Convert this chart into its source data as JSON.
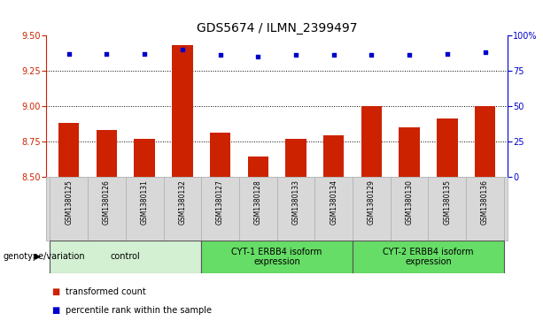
{
  "title": "GDS5674 / ILMN_2399497",
  "samples": [
    "GSM1380125",
    "GSM1380126",
    "GSM1380131",
    "GSM1380132",
    "GSM1380127",
    "GSM1380128",
    "GSM1380133",
    "GSM1380134",
    "GSM1380129",
    "GSM1380130",
    "GSM1380135",
    "GSM1380136"
  ],
  "bar_values": [
    8.88,
    8.83,
    8.77,
    9.43,
    8.81,
    8.64,
    8.77,
    8.79,
    9.0,
    8.85,
    8.91,
    9.0
  ],
  "dot_values": [
    87,
    87,
    87,
    90,
    86,
    85,
    86,
    86,
    86,
    86,
    87,
    88
  ],
  "bar_color": "#cc2200",
  "dot_color": "#0000cc",
  "ylim_left": [
    8.5,
    9.5
  ],
  "ylim_right": [
    0,
    100
  ],
  "yticks_left": [
    8.5,
    8.75,
    9.0,
    9.25,
    9.5
  ],
  "yticks_right": [
    0,
    25,
    50,
    75,
    100
  ],
  "grid_values": [
    8.75,
    9.0,
    9.25
  ],
  "groups": [
    {
      "label": "control",
      "start": 0,
      "end": 4,
      "color": "#d3f0d3"
    },
    {
      "label": "CYT-1 ERBB4 isoform\nexpression",
      "start": 4,
      "end": 8,
      "color": "#66dd66"
    },
    {
      "label": "CYT-2 ERBB4 isoform\nexpression",
      "start": 8,
      "end": 12,
      "color": "#66dd66"
    }
  ],
  "genotype_label": "genotype/variation",
  "legend_bar_label": "transformed count",
  "legend_dot_label": "percentile rank within the sample",
  "cell_bg": "#d8d8d8",
  "cell_border": "#aaaaaa",
  "title_fontsize": 10,
  "tick_fontsize": 7,
  "sample_fontsize": 5.5,
  "group_fontsize": 7,
  "legend_fontsize": 7,
  "genotype_fontsize": 7
}
